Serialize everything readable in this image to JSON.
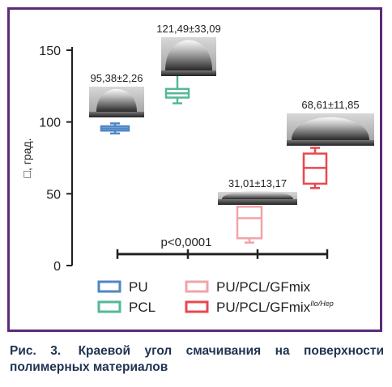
{
  "chart_data": {
    "type": "box",
    "ylabel": "□, град.",
    "ylim": [
      0,
      150
    ],
    "yticks": [
      0,
      50,
      100,
      150
    ],
    "grid": false,
    "legend_position": "bottom",
    "significance_label": "p<0,0001",
    "series": [
      {
        "name": "PU",
        "name_suffix": "",
        "color": "#4f86c6",
        "min": 92,
        "q1": 94,
        "median": 95.5,
        "q3": 97,
        "max": 99,
        "annotation": "95,38±2,26",
        "image": "droplet-photo"
      },
      {
        "name": "PCL",
        "name_suffix": "",
        "color": "#54b896",
        "min": 113,
        "q1": 117,
        "median": 120,
        "q3": 123,
        "max": 139,
        "annotation": "121,49±33,09",
        "image": "droplet-photo"
      },
      {
        "name": "PU/PCL/GFmix",
        "name_suffix": "",
        "color": "#f2a3a8",
        "min": 16,
        "q1": 19,
        "median": 33,
        "q3": 41,
        "max": 41,
        "annotation": "31,01±13,17",
        "image": "droplet-photo"
      },
      {
        "name": "PU/PCL/GFmix",
        "name_suffix": "Ilo/Hep",
        "color": "#e8484f",
        "min": 54,
        "q1": 57,
        "median": 68,
        "q3": 78,
        "max": 82,
        "annotation": "68,61±11,85",
        "image": "droplet-photo"
      }
    ]
  },
  "caption": {
    "label": "Рис. 3.",
    "text": "Краевой угол смачивания на поверхности полимерных материалов"
  }
}
